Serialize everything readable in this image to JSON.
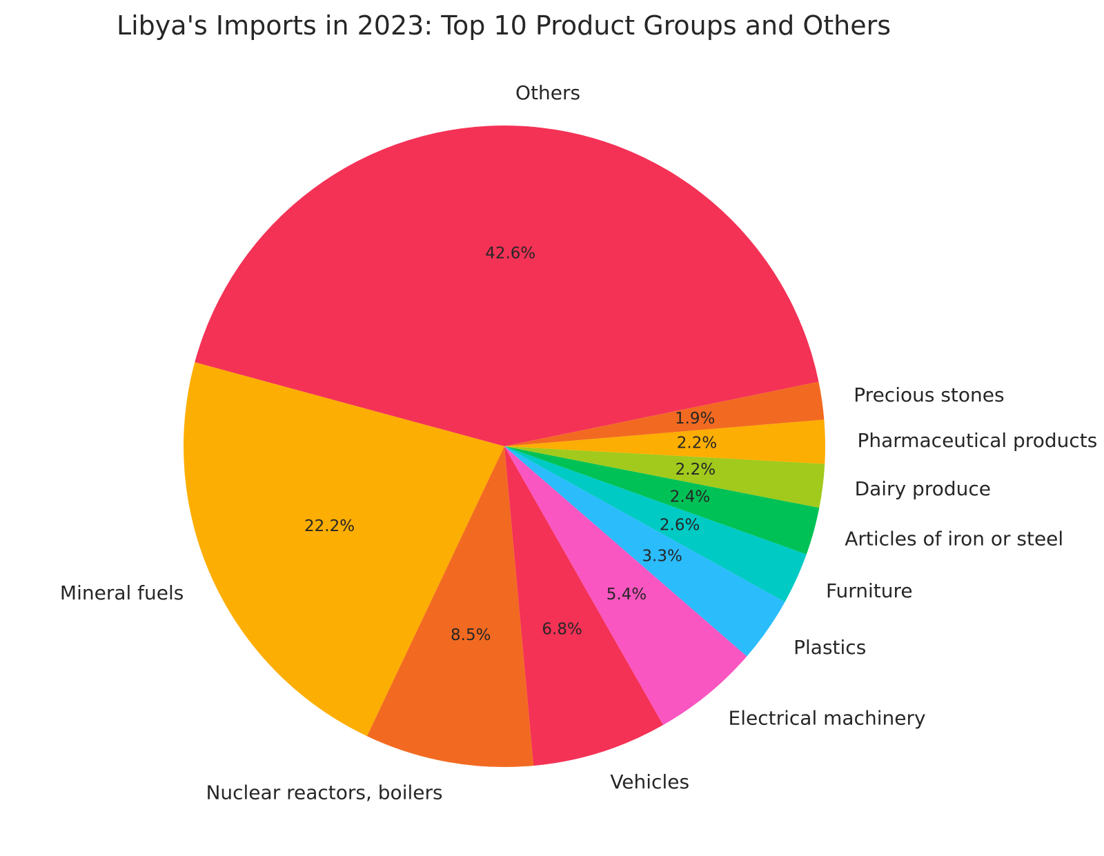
{
  "chart_data": {
    "type": "pie",
    "title": "Libya's Imports in 2023: Top 10 Product Groups and Others",
    "slices": [
      {
        "label": "Others",
        "percent": 42.6,
        "percent_label": "42.6%",
        "color": "#F43256"
      },
      {
        "label": "Mineral fuels",
        "percent": 22.2,
        "percent_label": "22.2%",
        "color": "#FDAE02"
      },
      {
        "label": "Nuclear reactors, boilers",
        "percent": 8.5,
        "percent_label": "8.5%",
        "color": "#F26A21"
      },
      {
        "label": "Vehicles",
        "percent": 6.8,
        "percent_label": "6.8%",
        "color": "#F43256"
      },
      {
        "label": "Electrical machinery",
        "percent": 5.4,
        "percent_label": "5.4%",
        "color": "#F956C1"
      },
      {
        "label": "Plastics",
        "percent": 3.3,
        "percent_label": "3.3%",
        "color": "#2BBCFC"
      },
      {
        "label": "Furniture",
        "percent": 2.6,
        "percent_label": "2.6%",
        "color": "#00CAC4"
      },
      {
        "label": "Articles of iron or steel",
        "percent": 2.4,
        "percent_label": "2.4%",
        "color": "#00C156"
      },
      {
        "label": "Dairy produce",
        "percent": 2.2,
        "percent_label": "2.2%",
        "color": "#A1CA1C"
      },
      {
        "label": "Pharmaceutical products",
        "percent": 2.2,
        "percent_label": "2.2%",
        "color": "#FDAE02"
      },
      {
        "label": "Precious stones",
        "percent": 1.9,
        "percent_label": "1.9%",
        "color": "#F26A21"
      }
    ],
    "start_angle_deg": 11.6,
    "direction": "counterclockwise",
    "legend": "none"
  }
}
